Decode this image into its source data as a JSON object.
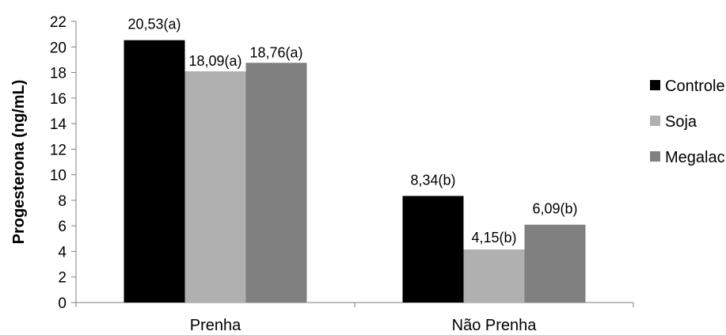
{
  "chart_data": {
    "type": "bar",
    "title": "",
    "xlabel": "",
    "ylabel": "Progesterona (ng/mL)",
    "ylim": [
      0,
      22
    ],
    "yticks": [
      0,
      2,
      4,
      6,
      8,
      10,
      12,
      14,
      16,
      18,
      20,
      22
    ],
    "categories": [
      "Prenha",
      "Não Prenha"
    ],
    "series": [
      {
        "name": "Controle",
        "color": "#000000",
        "values": [
          20.53,
          8.34
        ],
        "labels": [
          "20,53(a)",
          "8,34(b)"
        ]
      },
      {
        "name": "Soja",
        "color": "#b0b0b0",
        "values": [
          18.09,
          4.15
        ],
        "labels": [
          "18,09(a)",
          "4,15(b)"
        ]
      },
      {
        "name": "Megalac",
        "color": "#808080",
        "values": [
          18.76,
          6.09
        ],
        "labels": [
          "18,76(a)",
          "6,09(b)"
        ]
      }
    ],
    "legend": "right",
    "grid": false
  }
}
